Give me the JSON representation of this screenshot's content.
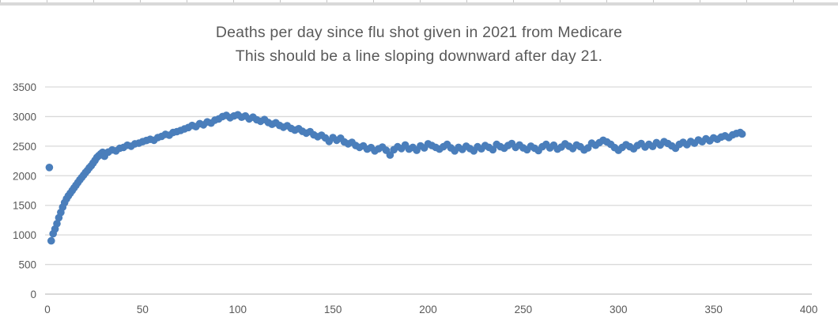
{
  "chart_data": {
    "type": "scatter",
    "title": "Deaths per day since flu shot given in 2021 from Medicare",
    "subtitle": "This should be a line sloping downward after day 21.",
    "xlabel": "",
    "ylabel": "",
    "xlim": [
      0,
      400
    ],
    "ylim": [
      0,
      3500
    ],
    "x_ticks": [
      0,
      50,
      100,
      150,
      200,
      250,
      300,
      350,
      400
    ],
    "y_ticks": [
      0,
      500,
      1000,
      1500,
      2000,
      2500,
      3000,
      3500
    ],
    "grid": "horizontal",
    "legend": "none",
    "marker_shape": "circle",
    "colors": {
      "marker": "#4A7EBB",
      "title_text": "#595959",
      "axis_label": "#595959",
      "gridline": "#D9D9D9",
      "axis_line": "#C0C0C0",
      "spreadsheet_edge": "#D9D9D9"
    },
    "points": [
      [
        1,
        2140
      ],
      [
        2,
        900
      ],
      [
        3,
        1020
      ],
      [
        4,
        1100
      ],
      [
        5,
        1190
      ],
      [
        6,
        1290
      ],
      [
        7,
        1380
      ],
      [
        8,
        1470
      ],
      [
        9,
        1545
      ],
      [
        10,
        1610
      ],
      [
        11,
        1660
      ],
      [
        12,
        1705
      ],
      [
        13,
        1750
      ],
      [
        14,
        1795
      ],
      [
        15,
        1840
      ],
      [
        16,
        1885
      ],
      [
        17,
        1930
      ],
      [
        18,
        1970
      ],
      [
        19,
        2010
      ],
      [
        20,
        2055
      ],
      [
        21,
        2090
      ],
      [
        22,
        2135
      ],
      [
        23,
        2170
      ],
      [
        24,
        2215
      ],
      [
        25,
        2260
      ],
      [
        26,
        2310
      ],
      [
        27,
        2340
      ],
      [
        28,
        2370
      ],
      [
        29,
        2395
      ],
      [
        30,
        2330
      ],
      [
        32,
        2400
      ],
      [
        34,
        2435
      ],
      [
        36,
        2420
      ],
      [
        38,
        2465
      ],
      [
        40,
        2480
      ],
      [
        42,
        2515
      ],
      [
        44,
        2500
      ],
      [
        46,
        2540
      ],
      [
        48,
        2550
      ],
      [
        50,
        2575
      ],
      [
        52,
        2595
      ],
      [
        54,
        2615
      ],
      [
        56,
        2600
      ],
      [
        58,
        2645
      ],
      [
        60,
        2665
      ],
      [
        62,
        2700
      ],
      [
        64,
        2685
      ],
      [
        66,
        2730
      ],
      [
        68,
        2745
      ],
      [
        70,
        2765
      ],
      [
        72,
        2790
      ],
      [
        74,
        2815
      ],
      [
        76,
        2850
      ],
      [
        78,
        2830
      ],
      [
        80,
        2880
      ],
      [
        82,
        2860
      ],
      [
        84,
        2910
      ],
      [
        86,
        2890
      ],
      [
        88,
        2940
      ],
      [
        90,
        2960
      ],
      [
        92,
        3000
      ],
      [
        94,
        3020
      ],
      [
        96,
        2980
      ],
      [
        98,
        3010
      ],
      [
        100,
        3030
      ],
      [
        102,
        2990
      ],
      [
        104,
        3010
      ],
      [
        106,
        2960
      ],
      [
        108,
        2990
      ],
      [
        110,
        2945
      ],
      [
        112,
        2920
      ],
      [
        114,
        2950
      ],
      [
        116,
        2900
      ],
      [
        118,
        2870
      ],
      [
        120,
        2895
      ],
      [
        122,
        2850
      ],
      [
        124,
        2820
      ],
      [
        126,
        2845
      ],
      [
        128,
        2800
      ],
      [
        130,
        2770
      ],
      [
        132,
        2795
      ],
      [
        134,
        2750
      ],
      [
        136,
        2720
      ],
      [
        138,
        2745
      ],
      [
        140,
        2690
      ],
      [
        142,
        2660
      ],
      [
        144,
        2685
      ],
      [
        146,
        2640
      ],
      [
        148,
        2580
      ],
      [
        150,
        2645
      ],
      [
        152,
        2600
      ],
      [
        154,
        2635
      ],
      [
        156,
        2570
      ],
      [
        158,
        2540
      ],
      [
        160,
        2565
      ],
      [
        162,
        2510
      ],
      [
        164,
        2480
      ],
      [
        166,
        2505
      ],
      [
        168,
        2450
      ],
      [
        170,
        2475
      ],
      [
        172,
        2420
      ],
      [
        174,
        2455
      ],
      [
        176,
        2485
      ],
      [
        178,
        2430
      ],
      [
        180,
        2350
      ],
      [
        182,
        2440
      ],
      [
        184,
        2490
      ],
      [
        186,
        2460
      ],
      [
        188,
        2520
      ],
      [
        190,
        2450
      ],
      [
        192,
        2480
      ],
      [
        194,
        2430
      ],
      [
        196,
        2505
      ],
      [
        198,
        2470
      ],
      [
        200,
        2540
      ],
      [
        202,
        2510
      ],
      [
        204,
        2480
      ],
      [
        206,
        2450
      ],
      [
        208,
        2490
      ],
      [
        210,
        2530
      ],
      [
        212,
        2470
      ],
      [
        214,
        2420
      ],
      [
        216,
        2480
      ],
      [
        218,
        2445
      ],
      [
        220,
        2500
      ],
      [
        222,
        2460
      ],
      [
        224,
        2420
      ],
      [
        226,
        2490
      ],
      [
        228,
        2455
      ],
      [
        230,
        2510
      ],
      [
        232,
        2480
      ],
      [
        234,
        2440
      ],
      [
        236,
        2530
      ],
      [
        238,
        2490
      ],
      [
        240,
        2465
      ],
      [
        242,
        2510
      ],
      [
        244,
        2545
      ],
      [
        246,
        2480
      ],
      [
        248,
        2520
      ],
      [
        250,
        2470
      ],
      [
        252,
        2440
      ],
      [
        254,
        2500
      ],
      [
        256,
        2465
      ],
      [
        258,
        2425
      ],
      [
        260,
        2490
      ],
      [
        262,
        2530
      ],
      [
        264,
        2470
      ],
      [
        266,
        2515
      ],
      [
        268,
        2450
      ],
      [
        270,
        2485
      ],
      [
        272,
        2540
      ],
      [
        274,
        2500
      ],
      [
        276,
        2460
      ],
      [
        278,
        2520
      ],
      [
        280,
        2490
      ],
      [
        282,
        2435
      ],
      [
        284,
        2470
      ],
      [
        286,
        2550
      ],
      [
        288,
        2515
      ],
      [
        290,
        2560
      ],
      [
        292,
        2600
      ],
      [
        294,
        2570
      ],
      [
        296,
        2530
      ],
      [
        298,
        2475
      ],
      [
        300,
        2430
      ],
      [
        302,
        2480
      ],
      [
        304,
        2525
      ],
      [
        306,
        2490
      ],
      [
        308,
        2455
      ],
      [
        310,
        2510
      ],
      [
        312,
        2545
      ],
      [
        314,
        2485
      ],
      [
        316,
        2530
      ],
      [
        318,
        2495
      ],
      [
        320,
        2560
      ],
      [
        322,
        2520
      ],
      [
        324,
        2575
      ],
      [
        326,
        2545
      ],
      [
        328,
        2505
      ],
      [
        330,
        2465
      ],
      [
        332,
        2530
      ],
      [
        334,
        2565
      ],
      [
        336,
        2525
      ],
      [
        338,
        2580
      ],
      [
        340,
        2550
      ],
      [
        342,
        2605
      ],
      [
        344,
        2575
      ],
      [
        346,
        2625
      ],
      [
        348,
        2590
      ],
      [
        350,
        2640
      ],
      [
        352,
        2615
      ],
      [
        354,
        2655
      ],
      [
        356,
        2675
      ],
      [
        358,
        2645
      ],
      [
        360,
        2690
      ],
      [
        362,
        2715
      ],
      [
        364,
        2730
      ],
      [
        365,
        2705
      ]
    ]
  }
}
